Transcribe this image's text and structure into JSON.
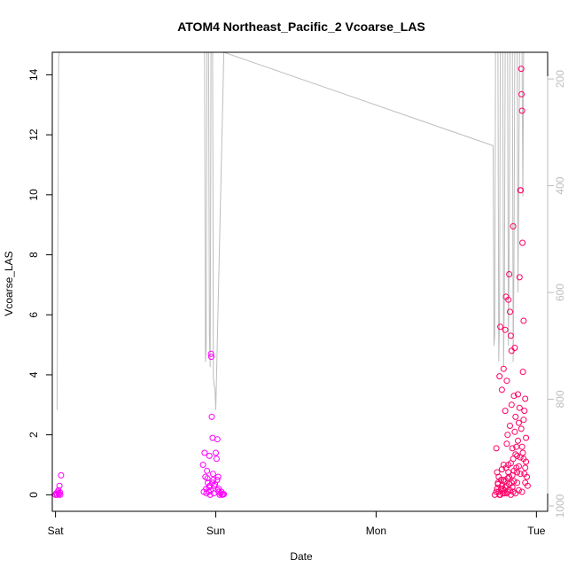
{
  "chart_data": {
    "type": "scatter",
    "title": "ATOM4 Northeast_Pacific_2 Vcoarse_LAS",
    "xlabel": "Date",
    "ylabel": "Vcoarse_LAS",
    "x_ticks": [
      "Sat",
      "Sun",
      "Mon",
      "Tue"
    ],
    "xlim": [
      -0.02,
      3.07
    ],
    "ylim": [
      -0.55,
      14.75
    ],
    "y_ticks": [
      0,
      2,
      4,
      6,
      8,
      10,
      12,
      14
    ],
    "y2_ticks": [
      200,
      400,
      600,
      800,
      1000
    ],
    "y2lim": [
      1010,
      150
    ],
    "y2_reversed": true,
    "grid": false,
    "colors": {
      "early": "#ff00ff",
      "late": "#ff0066",
      "pressure_line": "#bdbdbd"
    },
    "series": [
      {
        "axis": "left",
        "values": [
          [
            0.0,
            0.0
          ],
          [
            0.005,
            0.05
          ],
          [
            0.01,
            0.0
          ],
          [
            0.015,
            0.1
          ],
          [
            0.02,
            0.05
          ],
          [
            0.025,
            0.3
          ],
          [
            0.03,
            0.0
          ],
          [
            0.018,
            0.15
          ],
          [
            0.035,
            0.65
          ],
          [
            0.022,
            0.02
          ],
          [
            0.028,
            0.08
          ],
          [
            0.92,
            1.0
          ],
          [
            0.93,
            1.4
          ],
          [
            0.935,
            0.6
          ],
          [
            0.94,
            0.2
          ],
          [
            0.945,
            0.8
          ],
          [
            0.95,
            0.4
          ],
          [
            0.955,
            0.1
          ],
          [
            0.96,
            1.3
          ],
          [
            0.965,
            0.0
          ],
          [
            0.97,
            4.7
          ],
          [
            0.972,
            4.6
          ],
          [
            0.975,
            2.6
          ],
          [
            0.98,
            1.9
          ],
          [
            0.985,
            0.5
          ],
          [
            0.99,
            0.3
          ],
          [
            1.0,
            1.4
          ],
          [
            1.005,
            1.2
          ],
          [
            1.01,
            1.85
          ],
          [
            1.015,
            0.6
          ],
          [
            1.02,
            0.1
          ],
          [
            1.025,
            0.0
          ],
          [
            1.03,
            0.05
          ],
          [
            1.04,
            0.0
          ],
          [
            1.05,
            0.02
          ],
          [
            0.925,
            0.1
          ],
          [
            0.958,
            0.25
          ],
          [
            0.968,
            0.15
          ],
          [
            0.978,
            0.4
          ],
          [
            0.988,
            0.05
          ],
          [
            0.995,
            0.35
          ],
          [
            1.008,
            0.5
          ],
          [
            1.018,
            0.2
          ],
          [
            1.035,
            0.1
          ],
          [
            1.045,
            0.03
          ],
          [
            0.948,
            0.55
          ],
          [
            0.982,
            0.7
          ],
          [
            0.962,
            0.3
          ],
          [
            0.942,
            0.05
          ],
          [
            1.012,
            0.15
          ]
        ]
      },
      {
        "axis": "left",
        "values": [
          [
            2.74,
            0.0
          ],
          [
            2.75,
            1.55
          ],
          [
            2.755,
            0.75
          ],
          [
            2.76,
            0.35
          ],
          [
            2.765,
            0.1
          ],
          [
            2.77,
            3.95
          ],
          [
            2.775,
            5.6
          ],
          [
            2.78,
            0.5
          ],
          [
            2.785,
            3.5
          ],
          [
            2.79,
            0.2
          ],
          [
            2.795,
            1.0
          ],
          [
            2.8,
            0.05
          ],
          [
            2.805,
            5.5
          ],
          [
            2.81,
            6.6
          ],
          [
            2.815,
            3.8
          ],
          [
            2.82,
            2.0
          ],
          [
            2.825,
            6.5
          ],
          [
            2.83,
            7.35
          ],
          [
            2.835,
            6.1
          ],
          [
            2.84,
            5.3
          ],
          [
            2.845,
            4.8
          ],
          [
            2.85,
            1.55
          ],
          [
            2.855,
            8.95
          ],
          [
            2.86,
            3.3
          ],
          [
            2.865,
            4.9
          ],
          [
            2.87,
            2.6
          ],
          [
            2.875,
            0.9
          ],
          [
            2.88,
            1.3
          ],
          [
            2.885,
            3.35
          ],
          [
            2.89,
            2.4
          ],
          [
            2.895,
            7.25
          ],
          [
            2.9,
            10.15
          ],
          [
            2.902,
            10.15
          ],
          [
            2.905,
            14.2
          ],
          [
            2.907,
            13.35
          ],
          [
            2.91,
            12.8
          ],
          [
            2.913,
            8.4
          ],
          [
            2.916,
            4.1
          ],
          [
            2.92,
            5.8
          ],
          [
            2.925,
            2.8
          ],
          [
            2.93,
            3.2
          ],
          [
            2.935,
            1.9
          ],
          [
            2.94,
            0.6
          ],
          [
            2.945,
            0.3
          ],
          [
            2.75,
            0.1
          ],
          [
            2.76,
            0.4
          ],
          [
            2.77,
            0.0
          ],
          [
            2.78,
            0.2
          ],
          [
            2.79,
            0.05
          ],
          [
            2.8,
            0.45
          ],
          [
            2.81,
            0.3
          ],
          [
            2.82,
            0.1
          ],
          [
            2.83,
            0.6
          ],
          [
            2.84,
            0.0
          ],
          [
            2.85,
            0.25
          ],
          [
            2.86,
            0.8
          ],
          [
            2.87,
            0.05
          ],
          [
            2.88,
            0.4
          ],
          [
            2.89,
            0.15
          ],
          [
            2.9,
            0.7
          ],
          [
            2.91,
            0.1
          ],
          [
            2.92,
            1.2
          ],
          [
            2.93,
            0.9
          ],
          [
            2.795,
            4.2
          ],
          [
            2.805,
            2.8
          ],
          [
            2.815,
            1.7
          ],
          [
            2.825,
            1.0
          ],
          [
            2.835,
            2.3
          ],
          [
            2.845,
            3.0
          ],
          [
            2.855,
            1.2
          ],
          [
            2.865,
            2.1
          ],
          [
            2.875,
            1.6
          ],
          [
            2.885,
            1.8
          ],
          [
            2.895,
            2.9
          ],
          [
            2.905,
            2.2
          ],
          [
            2.915,
            1.4
          ],
          [
            2.925,
            0.7
          ],
          [
            2.935,
            1.1
          ],
          [
            2.755,
            0.2
          ],
          [
            2.765,
            0.6
          ],
          [
            2.775,
            0.0
          ],
          [
            2.785,
            0.3
          ],
          [
            2.8,
            0.15
          ],
          [
            2.81,
            0.9
          ],
          [
            2.82,
            0.55
          ],
          [
            2.83,
            0.35
          ],
          [
            2.84,
            1.05
          ],
          [
            2.85,
            0.65
          ],
          [
            2.86,
            0.45
          ],
          [
            2.87,
            1.35
          ],
          [
            2.88,
            0.75
          ],
          [
            2.89,
            0.95
          ],
          [
            2.9,
            1.25
          ],
          [
            2.91,
            1.6
          ],
          [
            2.92,
            2.5
          ],
          [
            2.93,
            0.4
          ],
          [
            2.785,
            0.85
          ],
          [
            2.795,
            0.5
          ],
          [
            2.805,
            0.25
          ],
          [
            2.815,
            0.05
          ],
          [
            2.825,
            0.75
          ],
          [
            2.835,
            0.15
          ],
          [
            2.845,
            0.4
          ],
          [
            2.855,
            0.1
          ]
        ]
      },
      {
        "axis": "right",
        "values": [
          [
            0.01,
            820
          ],
          [
            0.015,
            500
          ],
          [
            0.02,
            160
          ],
          [
            0.025,
            150
          ],
          [
            0.93,
            150
          ],
          [
            0.935,
            730
          ],
          [
            0.94,
            700
          ],
          [
            0.945,
            150
          ],
          [
            0.955,
            150
          ],
          [
            0.96,
            680
          ],
          [
            0.965,
            740
          ],
          [
            0.97,
            150
          ],
          [
            0.98,
            150
          ],
          [
            0.985,
            760
          ],
          [
            0.99,
            775
          ],
          [
            0.995,
            780
          ],
          [
            1.0,
            820
          ],
          [
            1.05,
            150
          ],
          [
            2.73,
            325
          ],
          [
            2.735,
            700
          ],
          [
            2.74,
            680
          ],
          [
            2.745,
            150
          ],
          [
            2.76,
            150
          ],
          [
            2.765,
            730
          ],
          [
            2.77,
            650
          ],
          [
            2.775,
            150
          ],
          [
            2.79,
            150
          ],
          [
            2.795,
            740
          ],
          [
            2.8,
            600
          ],
          [
            2.805,
            150
          ],
          [
            2.82,
            150
          ],
          [
            2.825,
            700
          ],
          [
            2.83,
            520
          ],
          [
            2.835,
            150
          ],
          [
            2.85,
            150
          ],
          [
            2.855,
            730
          ],
          [
            2.86,
            550
          ],
          [
            2.865,
            150
          ],
          [
            2.88,
            150
          ],
          [
            2.885,
            600
          ],
          [
            2.89,
            400
          ],
          [
            2.895,
            150
          ],
          [
            2.91,
            150
          ],
          [
            2.915,
            420
          ],
          [
            2.92,
            150
          ]
        ]
      }
    ]
  }
}
